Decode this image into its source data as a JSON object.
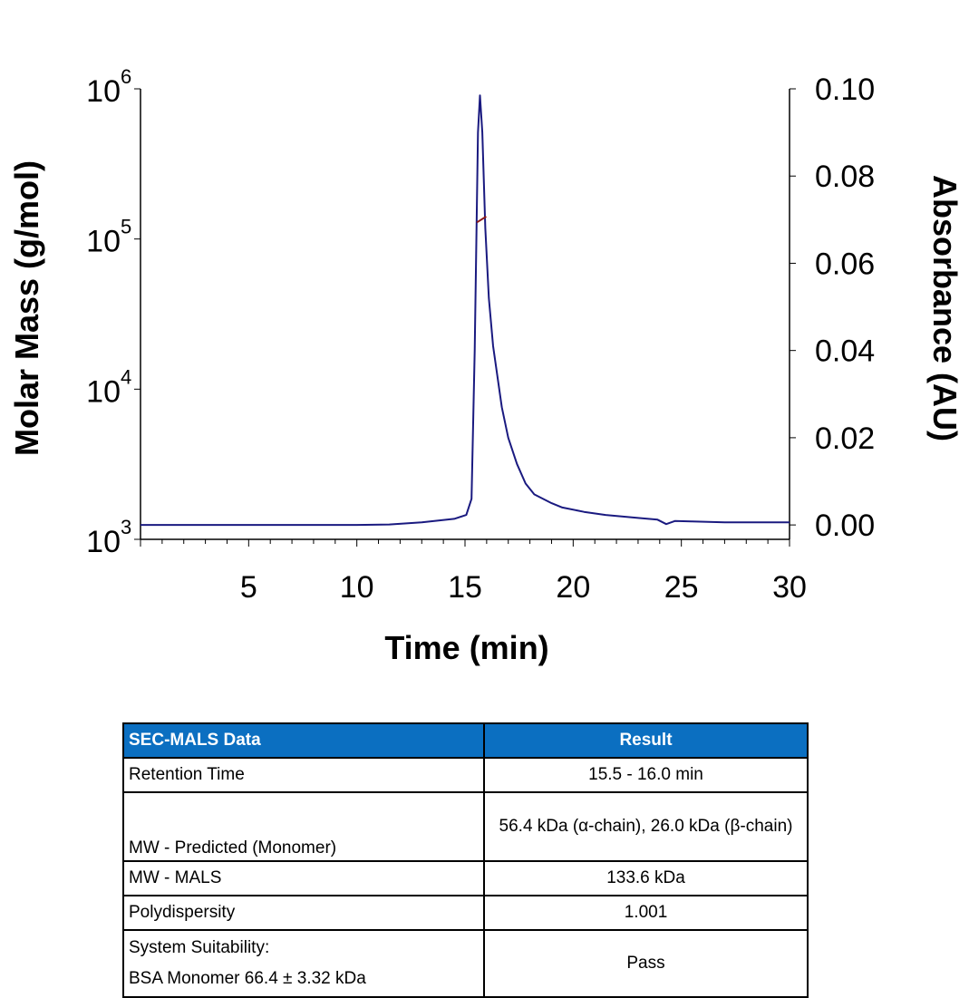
{
  "chart_data": {
    "type": "line",
    "xlabel": "Time (min)",
    "ylabel_left": "Molar Mass (g/mol)",
    "ylabel_right": "Absorbance (AU)",
    "xlim": [
      0,
      30
    ],
    "xticks": [
      5,
      10,
      15,
      20,
      25,
      30
    ],
    "ylim_left": [
      1000,
      1000000
    ],
    "yticks_left": [
      {
        "base": "10",
        "exp": "3"
      },
      {
        "base": "10",
        "exp": "4"
      },
      {
        "base": "10",
        "exp": "5"
      },
      {
        "base": "10",
        "exp": "6"
      }
    ],
    "ylim_right": [
      -0.0033,
      0.1
    ],
    "yticks_right": [
      "0.00",
      "0.02",
      "0.04",
      "0.06",
      "0.08",
      "0.10"
    ],
    "series": [
      {
        "name": "Absorbance",
        "axis": "right",
        "color": "#1a1a80",
        "x": [
          0,
          5,
          10,
          11.5,
          13,
          14.5,
          15.06,
          15.3,
          15.45,
          15.6,
          15.69,
          15.8,
          15.94,
          16.1,
          16.3,
          16.7,
          17.0,
          17.4,
          17.8,
          18.2,
          19.0,
          19.5,
          20.5,
          21.5,
          23.0,
          23.9,
          24.3,
          24.7,
          25.5,
          27,
          30
        ],
        "y": [
          0,
          0,
          0,
          0.0001,
          0.0006,
          0.0014,
          0.0023,
          0.006,
          0.04,
          0.09,
          0.0985,
          0.09,
          0.068,
          0.052,
          0.041,
          0.027,
          0.02,
          0.014,
          0.0095,
          0.007,
          0.005,
          0.004,
          0.003,
          0.0023,
          0.0016,
          0.0012,
          0.0002,
          0.0009,
          0.0008,
          0.0006,
          0.0006
        ]
      },
      {
        "name": "Molar Mass",
        "axis": "left",
        "color": "#8b1a1a",
        "x": [
          15.55,
          15.98
        ],
        "y": [
          129000,
          141000
        ]
      }
    ]
  },
  "table": {
    "headers": [
      "SEC-MALS Data",
      "Result"
    ],
    "rows": [
      {
        "label": "Retention Time",
        "value": "15.5 - 16.0 min"
      },
      {
        "label": "MW - Predicted (Monomer)",
        "value": "56.4 kDa (α-chain), 26.0 kDa (β-chain)"
      },
      {
        "label": "MW - MALS",
        "value": "133.6 kDa"
      },
      {
        "label": "Polydispersity",
        "value": "1.001"
      },
      {
        "label": "System Suitability:",
        "label2": "BSA Monomer 66.4 ± 3.32 kDa",
        "value": "Pass"
      }
    ]
  }
}
